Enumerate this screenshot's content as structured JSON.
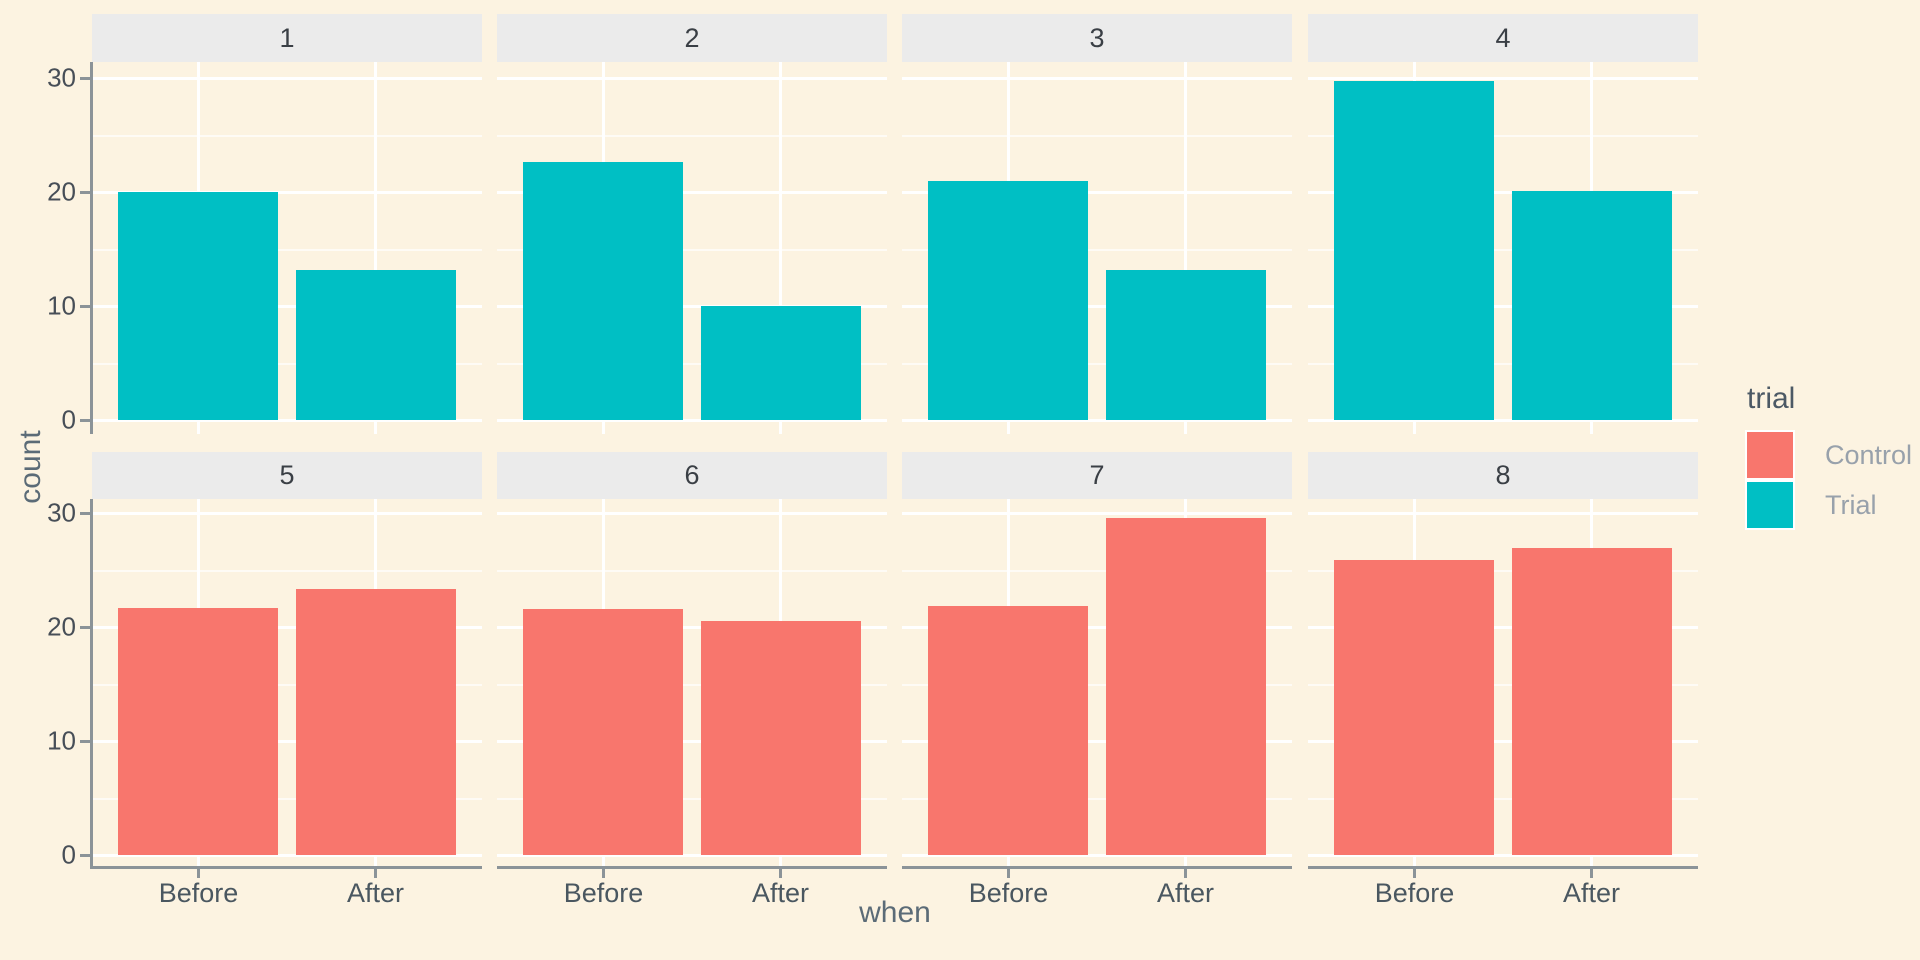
{
  "axes": {
    "x_label": "when",
    "y_label": "count",
    "y_ticks": [
      0,
      10,
      20,
      30
    ],
    "x_categories": [
      "Before",
      "After"
    ]
  },
  "legend": {
    "title": "trial",
    "items": [
      {
        "label": "Control",
        "color": "#F8766D"
      },
      {
        "label": "Trial",
        "color": "#00BFC4"
      }
    ]
  },
  "colors": {
    "background": "#FCF3E1",
    "strip_background": "#EBEBEB",
    "gridline": "#FFFFFF",
    "axis_line": "#8B9398",
    "control_fill": "#F8766D",
    "trial_fill": "#00BFC4"
  },
  "chart_data": {
    "type": "bar",
    "title": "",
    "xlabel": "when",
    "ylabel": "count",
    "categories": [
      "Before",
      "After"
    ],
    "ylim": [
      0,
      31.4
    ],
    "y_major_gridlines": [
      0,
      10,
      20,
      30
    ],
    "y_minor_gridlines": [
      5,
      15,
      25
    ],
    "grid": "white major and minor horizontal lines plus vertical lines at category centers on cream background",
    "legend_position": "right",
    "facet_layout": {
      "rows": 2,
      "cols": 4
    },
    "facets": [
      {
        "label": "1",
        "group": "Trial",
        "color": "#00BFC4",
        "values": [
          20.0,
          13.2
        ]
      },
      {
        "label": "2",
        "group": "Trial",
        "color": "#00BFC4",
        "values": [
          22.6,
          10.0
        ]
      },
      {
        "label": "3",
        "group": "Trial",
        "color": "#00BFC4",
        "values": [
          21.0,
          13.2
        ]
      },
      {
        "label": "4",
        "group": "Trial",
        "color": "#00BFC4",
        "values": [
          29.7,
          20.1
        ]
      },
      {
        "label": "5",
        "group": "Control",
        "color": "#F8766D",
        "values": [
          21.7,
          23.3
        ]
      },
      {
        "label": "6",
        "group": "Control",
        "color": "#F8766D",
        "values": [
          21.6,
          20.5
        ]
      },
      {
        "label": "7",
        "group": "Control",
        "color": "#F8766D",
        "values": [
          21.8,
          29.6
        ]
      },
      {
        "label": "8",
        "group": "Control",
        "color": "#F8766D",
        "values": [
          25.9,
          26.9
        ]
      }
    ]
  }
}
